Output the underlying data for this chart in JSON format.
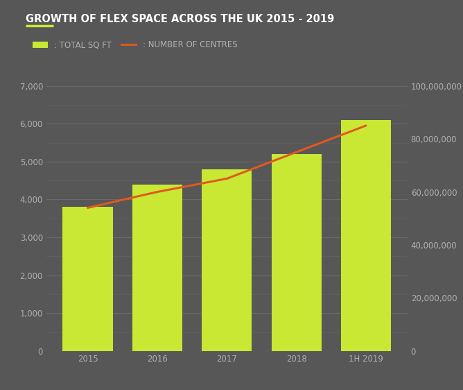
{
  "title": "GROWTH OF FLEX SPACE ACROSS THE UK 2015 - 2019",
  "categories": [
    "2015",
    "2016",
    "2017",
    "2018",
    "1H 2019"
  ],
  "bar_values": [
    3800,
    4400,
    4800,
    5200,
    6100
  ],
  "line_values": [
    54000000,
    60000000,
    65000000,
    75000000,
    85000000
  ],
  "bar_color": "#c8e833",
  "line_color": "#e05a1e",
  "background_color": "#575757",
  "text_color": "#b0b0b0",
  "title_color": "#ffffff",
  "major_grid_color": "#6a6a6a",
  "minor_grid_color": "#626262",
  "left_ylim": [
    0,
    7000
  ],
  "right_ylim": [
    0,
    100000000
  ],
  "left_major_yticks": [
    0,
    1000,
    2000,
    3000,
    4000,
    5000,
    6000,
    7000
  ],
  "right_major_yticks": [
    0,
    20000000,
    40000000,
    60000000,
    80000000,
    100000000
  ],
  "legend_bar_label": ": TOTAL SQ FT",
  "legend_line_label": ": NUMBER OF CENTRES",
  "title_fontsize": 10.5,
  "axis_fontsize": 8.5,
  "legend_fontsize": 8.5,
  "bar_width": 0.72,
  "deco_line_color": "#c8e833"
}
